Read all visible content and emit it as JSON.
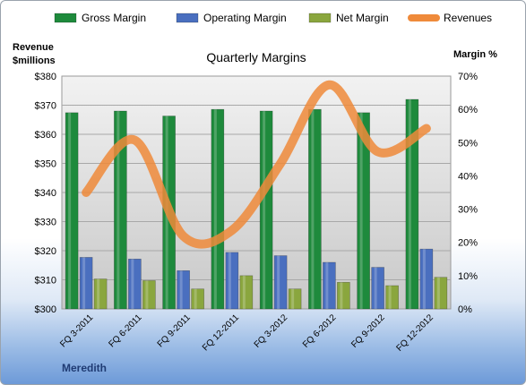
{
  "chart_data": {
    "type": "bar",
    "title": "Quarterly Margins",
    "company": "Meredith",
    "categories": [
      "FQ 3-2011",
      "FQ 6-2011",
      "FQ 9-2011",
      "FQ 12-2011",
      "FQ 3-2012",
      "FQ 6-2012",
      "FQ 9-2012",
      "FQ 12-2012"
    ],
    "series": [
      {
        "name": "Gross Margin",
        "type": "bar",
        "axis": "right",
        "color": "#1e8a3c",
        "values": [
          59,
          59.5,
          58,
          60,
          59.5,
          60,
          59,
          63
        ]
      },
      {
        "name": "Operating Margin",
        "type": "bar",
        "axis": "right",
        "color": "#4a6fbf",
        "values": [
          15.5,
          15,
          11.5,
          17,
          16,
          14,
          12.5,
          18
        ]
      },
      {
        "name": "Net Margin",
        "type": "bar",
        "axis": "right",
        "color": "#8aa63e",
        "values": [
          9,
          8.5,
          6,
          10,
          6,
          8,
          7,
          9.5
        ]
      },
      {
        "name": "Revenues",
        "type": "line",
        "axis": "left",
        "color": "#ef8a3a",
        "values": [
          340,
          358,
          325,
          327,
          350,
          377,
          354,
          362
        ]
      }
    ],
    "left_axis": {
      "label_line1": "Revenue",
      "label_line2": "$millions",
      "range": [
        300,
        380
      ],
      "ticks": [
        "$300",
        "$310",
        "$320",
        "$330",
        "$340",
        "$350",
        "$360",
        "$370",
        "$380"
      ]
    },
    "right_axis": {
      "label": "Margin %",
      "range": [
        0,
        70
      ],
      "ticks": [
        "0%",
        "10%",
        "20%",
        "30%",
        "40%",
        "50%",
        "60%",
        "70%"
      ]
    },
    "legend_position": "top",
    "grid": true
  }
}
